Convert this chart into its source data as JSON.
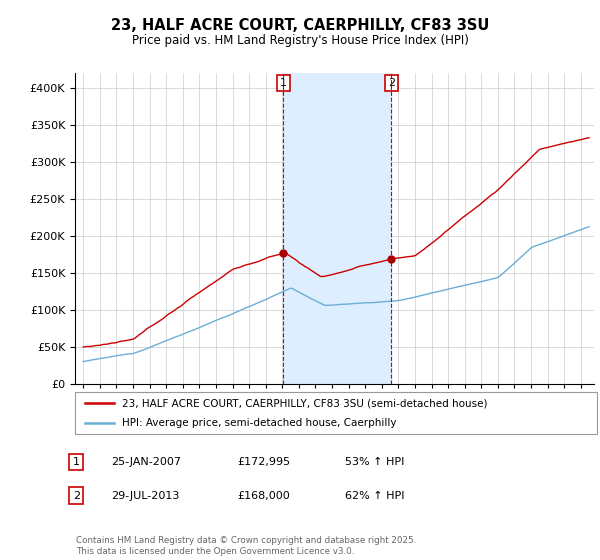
{
  "title1": "23, HALF ACRE COURT, CAERPHILLY, CF83 3SU",
  "title2": "Price paid vs. HM Land Registry's House Price Index (HPI)",
  "legend_house": "23, HALF ACRE COURT, CAERPHILLY, CF83 3SU (semi-detached house)",
  "legend_hpi": "HPI: Average price, semi-detached house, Caerphilly",
  "annotation1_date": "25-JAN-2007",
  "annotation1_price": "£172,995",
  "annotation1_hpi": "53% ↑ HPI",
  "annotation2_date": "29-JUL-2013",
  "annotation2_price": "£168,000",
  "annotation2_hpi": "62% ↑ HPI",
  "footer": "Contains HM Land Registry data © Crown copyright and database right 2025.\nThis data is licensed under the Open Government Licence v3.0.",
  "house_color": "#cc0000",
  "hpi_color": "#6baed6",
  "shade_color": "#ddeeff",
  "annotation_color": "#cc0000",
  "dot_color": "#aa0000",
  "ylim": [
    0,
    420000
  ],
  "yticks": [
    0,
    50000,
    100000,
    150000,
    200000,
    250000,
    300000,
    350000,
    400000
  ],
  "marker1_year": 2007.07,
  "marker1_house_val": 172995,
  "marker2_year": 2013.58,
  "marker2_house_val": 168000,
  "xlim_left": 1994.5,
  "xlim_right": 2025.8
}
